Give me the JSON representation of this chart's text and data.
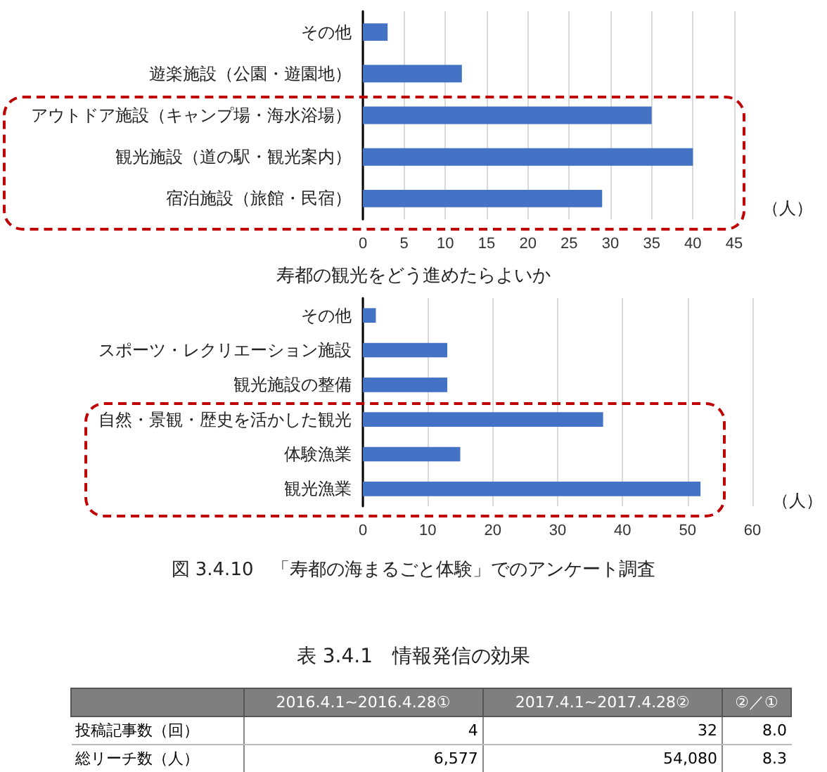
{
  "chart_data": [
    {
      "type": "bar",
      "orientation": "horizontal",
      "xlabel": "（人）",
      "categories": [
        "その他",
        "遊楽施設（公園・遊園地）",
        "アウトドア施設（キャンプ場・海水浴場）",
        "観光施設（道の駅・観光案内）",
        "宿泊施設（旅館・民宿）"
      ],
      "values": [
        3,
        12,
        35,
        40,
        29
      ],
      "color": "#4472c4",
      "xlim": [
        0,
        45
      ],
      "xticks": [
        0,
        5,
        10,
        15,
        20,
        25,
        30,
        35,
        40,
        45
      ],
      "grid": "x"
    },
    {
      "type": "bar",
      "orientation": "horizontal",
      "title": "寿都の観光をどう進めたらよいか",
      "xlabel": "（人）",
      "categories": [
        "その他",
        "スポーツ・レクリエーション施設",
        "観光施設の整備",
        "自然・景観・歴史を活かした観光",
        "体験漁業",
        "観光漁業"
      ],
      "values": [
        2,
        13,
        13,
        37,
        15,
        52
      ],
      "color": "#4472c4",
      "xlim": [
        0,
        60
      ],
      "xticks": [
        0,
        10,
        20,
        30,
        40,
        50,
        60
      ],
      "grid": "x",
      "annotations": [
        "図 3.4.10　「寿都の海まるごと体験」でのアンケート調査"
      ]
    },
    {
      "type": "other",
      "title": "表 3.4.1　情報発信の効果",
      "categories": [
        null,
        "2016.4.1~2016.4.28①",
        "2017.4.1~2017.4.28②",
        "②／①"
      ],
      "y_categories": [
        "投稿記事数（回）",
        "総リーチ数（人）"
      ],
      "cell_labels": [
        [
          "4",
          "32",
          "8.0"
        ],
        [
          "6,577",
          "54,080",
          "8.3"
        ]
      ]
    }
  ]
}
